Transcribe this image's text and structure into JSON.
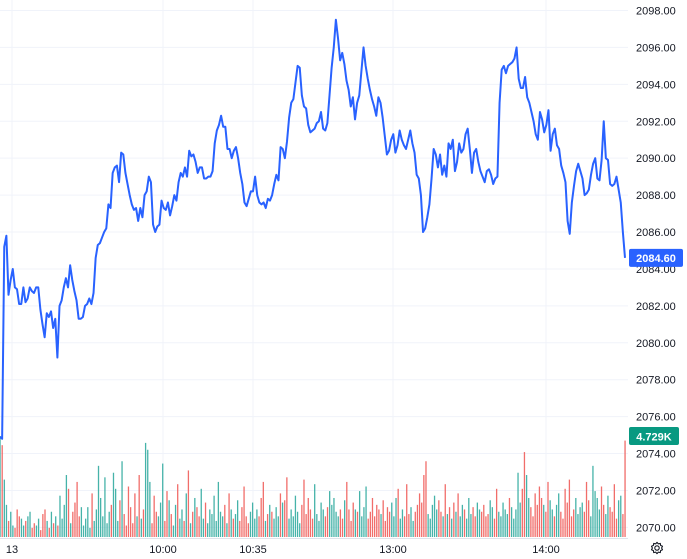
{
  "chart_data": {
    "type": "line",
    "y_ticks": [
      "2098.00",
      "2096.00",
      "2094.00",
      "2092.00",
      "2090.00",
      "2088.00",
      "2086.00",
      "2084.00",
      "2082.00",
      "2080.00",
      "2078.00",
      "2076.00",
      "2074.00",
      "2072.00",
      "2070.00"
    ],
    "x_ticks": [
      "13",
      "10:00",
      "10:35",
      "13:00",
      "14:00"
    ],
    "ylim": [
      2070,
      2098
    ],
    "last_price_label": "2084.60",
    "last_volume_label": "4.729K",
    "grid": true,
    "colors": {
      "line": "#2962ff",
      "price_badge": "#2962ff",
      "volume_badge": "#089981",
      "volume_up": "#26a69a",
      "volume_down": "#ef5350",
      "grid": "#f0f3fa",
      "axis_text": "#131722"
    },
    "series": [
      {
        "values": [
          2074.9,
          2074.8,
          2085.2,
          2085.8,
          2082.6,
          2083.4,
          2084.0,
          2083.0,
          2082.9,
          2082.1,
          2082.1,
          2083.0,
          2082.2,
          2082.4,
          2083.0,
          2082.8,
          2082.7,
          2083.0,
          2083.0,
          2081.8,
          2081.0,
          2080.3,
          2081.6,
          2081.4,
          2081.7,
          2080.8,
          2081.3,
          2079.2,
          2082.0,
          2082.3,
          2083.0,
          2083.5,
          2083.0,
          2084.2,
          2083.4,
          2082.8,
          2082.3,
          2081.3,
          2081.3,
          2081.4,
          2082.0,
          2082.1,
          2082.4,
          2082.1,
          2082.7,
          2084.6,
          2085.3,
          2085.4,
          2085.7,
          2086.0,
          2086.2,
          2087.5,
          2087.3,
          2089.2,
          2089.5,
          2089.6,
          2088.7,
          2090.3,
          2090.2,
          2089.2,
          2088.6,
          2088.0,
          2087.5,
          2087.2,
          2087.3,
          2086.6,
          2087.3,
          2086.8,
          2088.0,
          2088.2,
          2089.0,
          2088.7,
          2086.4,
          2086.0,
          2086.3,
          2086.4,
          2087.7,
          2087.3,
          2087.2,
          2087.6,
          2086.9,
          2087.4,
          2088.0,
          2087.7,
          2088.7,
          2089.2,
          2089.0,
          2089.5,
          2089.0,
          2090.4,
          2090.1,
          2090.2,
          2089.8,
          2089.2,
          2089.5,
          2089.5,
          2088.9,
          2088.9,
          2089.0,
          2089.0,
          2089.3,
          2090.8,
          2091.5,
          2091.8,
          2092.3,
          2091.7,
          2091.7,
          2090.5,
          2090.5,
          2090.0,
          2090.4,
          2090.6,
          2090.0,
          2089.2,
          2088.6,
          2087.6,
          2087.4,
          2087.8,
          2088.2,
          2088.2,
          2089.0,
          2088.0,
          2087.6,
          2087.5,
          2087.6,
          2087.3,
          2087.8,
          2087.7,
          2088.0,
          2088.6,
          2089.1,
          2088.8,
          2090.6,
          2090.5,
          2090.0,
          2090.9,
          2092.2,
          2093.0,
          2093.2,
          2094.1,
          2095.0,
          2094.9,
          2093.4,
          2092.8,
          2092.7,
          2091.8,
          2091.4,
          2091.5,
          2091.6,
          2091.9,
          2092.0,
          2092.5,
          2091.6,
          2091.5,
          2091.9,
          2093.4,
          2094.9,
          2096.0,
          2097.5,
          2096.5,
          2095.3,
          2095.7,
          2095.1,
          2094.2,
          2093.7,
          2092.8,
          2093.3,
          2092.1,
          2093.0,
          2093.4,
          2094.7,
          2096.0,
          2095.0,
          2094.3,
          2093.7,
          2093.2,
          2092.8,
          2092.3,
          2093.3,
          2093.0,
          2092.2,
          2091.2,
          2090.2,
          2090.4,
          2091.0,
          2091.3,
          2090.3,
          2090.7,
          2091.5,
          2091.0,
          2090.7,
          2090.5,
          2091.0,
          2091.5,
          2090.8,
          2090.3,
          2089.1,
          2088.9,
          2088.0,
          2086.0,
          2086.2,
          2086.8,
          2087.5,
          2088.9,
          2090.5,
          2090.2,
          2089.5,
          2090.2,
          2089.1,
          2089.6,
          2089.0,
          2090.8,
          2090.5,
          2091.0,
          2089.3,
          2089.8,
          2090.8,
          2090.3,
          2090.5,
          2091.3,
          2091.6,
          2090.5,
          2089.2,
          2090.3,
          2090.5,
          2089.8,
          2089.3,
          2089.0,
          2088.7,
          2089.3,
          2089.4,
          2089.1,
          2088.6,
          2088.9,
          2089.0,
          2093.0,
          2094.8,
          2095.0,
          2094.6,
          2095.0,
          2095.1,
          2095.2,
          2095.4,
          2096.0,
          2094.3,
          2093.8,
          2093.8,
          2094.4,
          2093.3,
          2093.0,
          2092.5,
          2092.0,
          2091.3,
          2091.0,
          2092.5,
          2092.1,
          2091.4,
          2091.8,
          2092.6,
          2090.4,
          2091.3,
          2091.6,
          2090.7,
          2090.5,
          2089.6,
          2089.2,
          2088.7,
          2086.6,
          2085.9,
          2087.6,
          2088.5,
          2089.3,
          2089.7,
          2089.3,
          2088.9,
          2088.0,
          2088.1,
          2088.3,
          2089.1,
          2089.7,
          2090.0,
          2088.9,
          2088.8,
          2089.9,
          2092.0,
          2090.0,
          2089.9,
          2088.6,
          2088.5,
          2088.6,
          2089.0,
          2088.3,
          2087.6,
          2086.0,
          2084.6
        ]
      }
    ],
    "volume": [
      44,
      40,
      25,
      14,
      7,
      11,
      5,
      4,
      12,
      9,
      8,
      5,
      7,
      9,
      11,
      4,
      6,
      5,
      8,
      3,
      10,
      12,
      7,
      4,
      11,
      6,
      9,
      5,
      18,
      8,
      14,
      27,
      21,
      6,
      11,
      15,
      24,
      9,
      13,
      5,
      8,
      13,
      4,
      19,
      7,
      12,
      31,
      17,
      9,
      26,
      6,
      11,
      14,
      28,
      21,
      7,
      16,
      33,
      10,
      5,
      22,
      13,
      6,
      19,
      9,
      27,
      8,
      12,
      41,
      38,
      24,
      6,
      18,
      11,
      9,
      15,
      32,
      7,
      20,
      16,
      10,
      5,
      14,
      23,
      8,
      12,
      7,
      19,
      29,
      6,
      11,
      17,
      13,
      9,
      21,
      8,
      15,
      6,
      12,
      10,
      18,
      7,
      24,
      11,
      9,
      14,
      6,
      19,
      12,
      8,
      10,
      16,
      7,
      13,
      22,
      9,
      6,
      11,
      15,
      8,
      12,
      9,
      17,
      24,
      7,
      10,
      14,
      11,
      8,
      13,
      9,
      19,
      15,
      16,
      26,
      8,
      12,
      9,
      18,
      11,
      6,
      14,
      25,
      10,
      17,
      12,
      8,
      23,
      10,
      7,
      15,
      12,
      9,
      13,
      20,
      14,
      17,
      11,
      9,
      12,
      8,
      16,
      24,
      12,
      7,
      15,
      12,
      11,
      20,
      9,
      13,
      22,
      8,
      11,
      17,
      9,
      14,
      12,
      10,
      16,
      7,
      13,
      11,
      15,
      9,
      17,
      21,
      8,
      12,
      9,
      23,
      10,
      13,
      7,
      11,
      14,
      19,
      15,
      27,
      33,
      10,
      8,
      14,
      18,
      12,
      16,
      11,
      9,
      23,
      10,
      13,
      8,
      15,
      11,
      19,
      9,
      14,
      12,
      8,
      17,
      10,
      13,
      9,
      15,
      12,
      11,
      14,
      9,
      10,
      16,
      13,
      8,
      21,
      11,
      9,
      15,
      12,
      10,
      17,
      13,
      8,
      12,
      28,
      15,
      21,
      37,
      27,
      17,
      13,
      9,
      19,
      14,
      22,
      17,
      14,
      11,
      24,
      16,
      12,
      9,
      14,
      19,
      11,
      8,
      21,
      15,
      25,
      9,
      12,
      17,
      10,
      13,
      15,
      11,
      24,
      16,
      9,
      31,
      20,
      17,
      12,
      22,
      14,
      10,
      18,
      13,
      11,
      23,
      8,
      16,
      18,
      10,
      42
    ]
  }
}
